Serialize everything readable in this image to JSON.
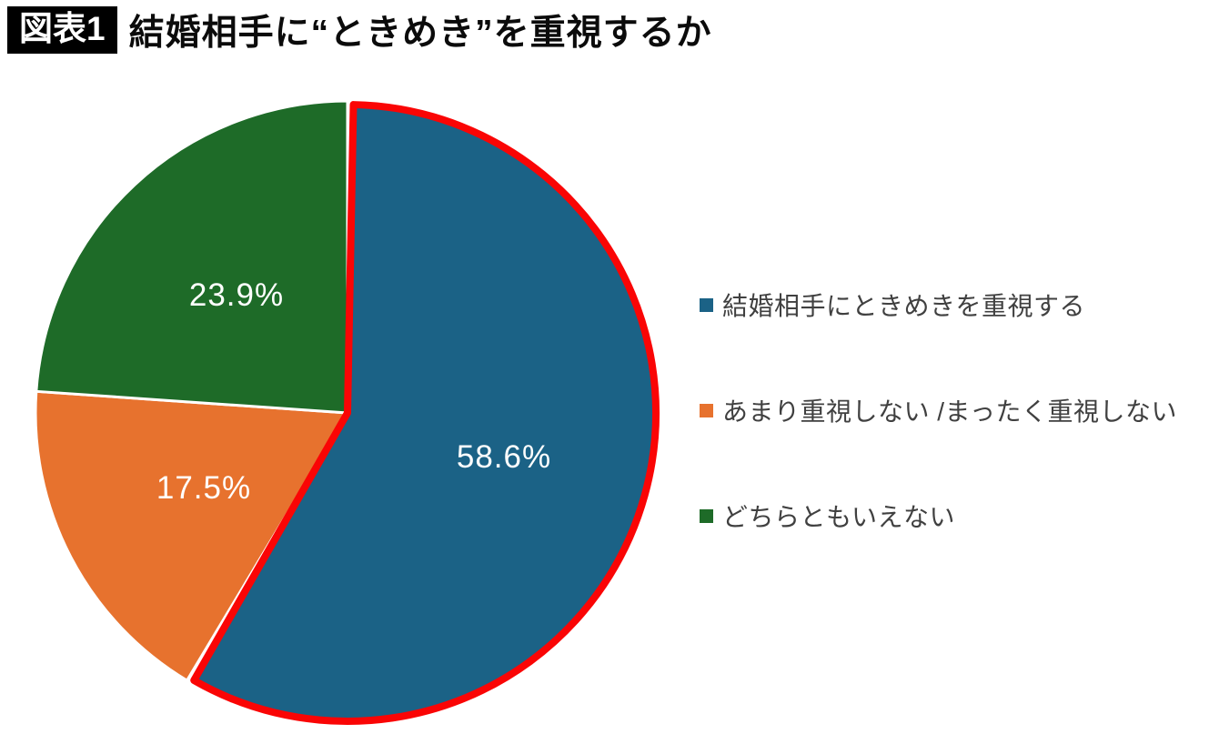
{
  "figure": {
    "badge": "図表1",
    "title": "結婚相手に“ときめき”を重視するか"
  },
  "chart_data": {
    "type": "pie",
    "title": "結婚相手に“ときめき”を重視するか",
    "unit": "percent",
    "direction": "clockwise",
    "start_angle_deg": 0,
    "legend_position": "right",
    "label_color": "#FFFFFF",
    "slices": [
      {
        "label": "結婚相手にときめきを重視する",
        "value": 58.6,
        "display": "58.6%",
        "color": "#1B6286",
        "highlighted": true,
        "highlight_color": "#FA0505"
      },
      {
        "label": "あまり重視しない /まったく重視しない",
        "value": 17.5,
        "display": "17.5%",
        "color": "#E7722E",
        "highlighted": false
      },
      {
        "label": "どちらともいえない",
        "value": 23.9,
        "display": "23.9%",
        "color": "#1E6B28",
        "highlighted": false
      }
    ]
  }
}
